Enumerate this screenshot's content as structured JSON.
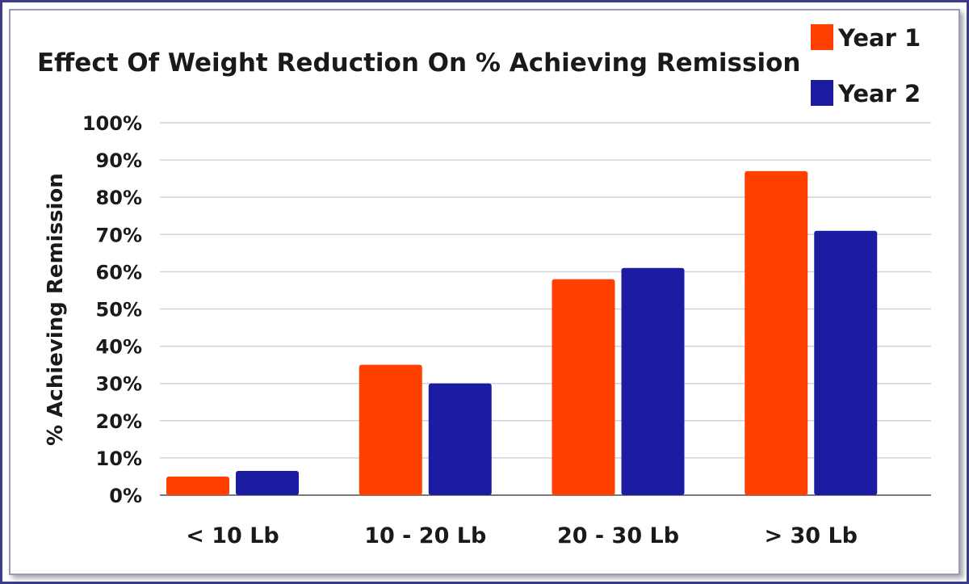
{
  "chart_data": {
    "type": "bar",
    "title": "Effect Of Weight Reduction On % Achieving Remission",
    "ylabel": "% Achieving Remission",
    "xlabel": "",
    "categories": [
      "< 10 Lb",
      "10 - 20 Lb",
      "20 - 30 Lb",
      "> 30 Lb"
    ],
    "series": [
      {
        "name": "Year 1",
        "color": "#ff4000",
        "values": [
          5,
          35,
          58,
          87
        ]
      },
      {
        "name": "Year 2",
        "color": "#1c1ca3",
        "values": [
          6.5,
          30,
          61,
          71
        ]
      }
    ],
    "ylim": [
      0,
      100
    ],
    "yticks": [
      "0%",
      "10%",
      "20%",
      "30%",
      "40%",
      "50%",
      "60%",
      "70%",
      "80%",
      "90%",
      "100%"
    ],
    "grid": true,
    "legend_position": "top-right"
  }
}
